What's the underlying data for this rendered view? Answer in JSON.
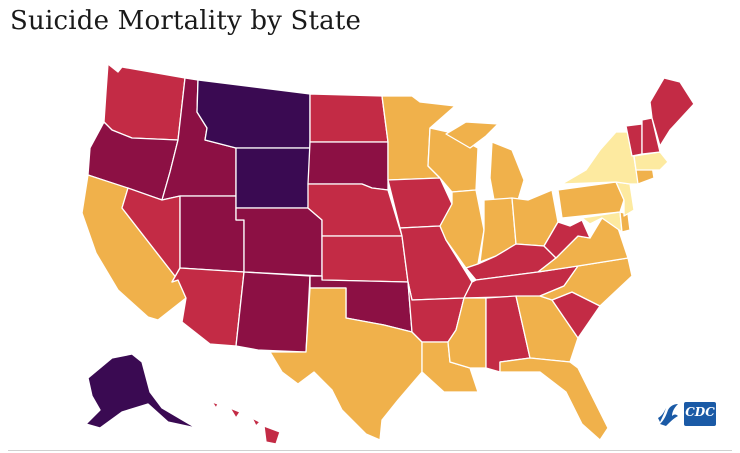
{
  "title": "Suicide Mortality by State",
  "palette": {
    "lightest": "#fdeaa0",
    "light": "#f0b14b",
    "medium": "#c32b45",
    "high": "#8c1044",
    "highest": "#3a0a52"
  },
  "states": [
    {
      "name": "Washington",
      "tier": "medium"
    },
    {
      "name": "Oregon",
      "tier": "high"
    },
    {
      "name": "California",
      "tier": "light"
    },
    {
      "name": "Idaho",
      "tier": "high"
    },
    {
      "name": "Nevada",
      "tier": "medium"
    },
    {
      "name": "Utah",
      "tier": "high"
    },
    {
      "name": "Arizona",
      "tier": "medium"
    },
    {
      "name": "Montana",
      "tier": "highest"
    },
    {
      "name": "Wyoming",
      "tier": "highest"
    },
    {
      "name": "Colorado",
      "tier": "high"
    },
    {
      "name": "New Mexico",
      "tier": "high"
    },
    {
      "name": "North Dakota",
      "tier": "medium"
    },
    {
      "name": "South Dakota",
      "tier": "high"
    },
    {
      "name": "Nebraska",
      "tier": "medium"
    },
    {
      "name": "Kansas",
      "tier": "medium"
    },
    {
      "name": "Oklahoma",
      "tier": "high"
    },
    {
      "name": "Texas",
      "tier": "light"
    },
    {
      "name": "Minnesota",
      "tier": "light"
    },
    {
      "name": "Iowa",
      "tier": "medium"
    },
    {
      "name": "Missouri",
      "tier": "medium"
    },
    {
      "name": "Arkansas",
      "tier": "medium"
    },
    {
      "name": "Louisiana",
      "tier": "light"
    },
    {
      "name": "Wisconsin",
      "tier": "light"
    },
    {
      "name": "Illinois",
      "tier": "light"
    },
    {
      "name": "Michigan",
      "tier": "light"
    },
    {
      "name": "Indiana",
      "tier": "light"
    },
    {
      "name": "Ohio",
      "tier": "light"
    },
    {
      "name": "Kentucky",
      "tier": "medium"
    },
    {
      "name": "Tennessee",
      "tier": "medium"
    },
    {
      "name": "Mississippi",
      "tier": "light"
    },
    {
      "name": "Alabama",
      "tier": "medium"
    },
    {
      "name": "Georgia",
      "tier": "light"
    },
    {
      "name": "Florida",
      "tier": "light"
    },
    {
      "name": "South Carolina",
      "tier": "medium"
    },
    {
      "name": "North Carolina",
      "tier": "light"
    },
    {
      "name": "Virginia",
      "tier": "light"
    },
    {
      "name": "West Virginia",
      "tier": "medium"
    },
    {
      "name": "Pennsylvania",
      "tier": "light"
    },
    {
      "name": "New York",
      "tier": "lightest"
    },
    {
      "name": "Maryland",
      "tier": "lightest"
    },
    {
      "name": "Delaware",
      "tier": "light"
    },
    {
      "name": "New Jersey",
      "tier": "lightest"
    },
    {
      "name": "Connecticut",
      "tier": "light"
    },
    {
      "name": "Massachusetts",
      "tier": "lightest"
    },
    {
      "name": "Vermont",
      "tier": "medium"
    },
    {
      "name": "New Hampshire",
      "tier": "medium"
    },
    {
      "name": "Maine",
      "tier": "medium"
    },
    {
      "name": "Alaska",
      "tier": "highest"
    },
    {
      "name": "Hawaii",
      "tier": "medium"
    }
  ],
  "logos": [
    "hhs-logo",
    "cdc-logo"
  ],
  "logo_text": {
    "cdc": "CDC"
  }
}
